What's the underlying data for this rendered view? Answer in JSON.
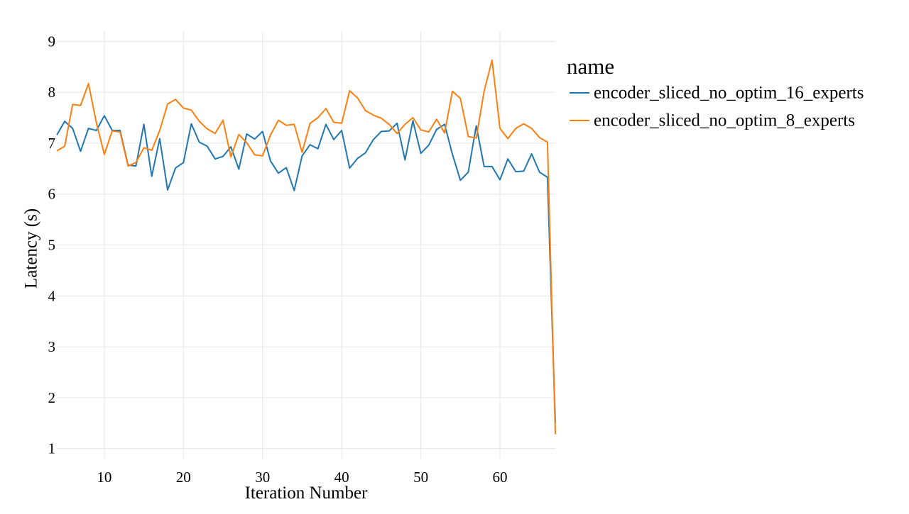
{
  "chart_data": {
    "type": "line",
    "title": "",
    "xlabel": "Iteration Number",
    "ylabel": "Latency (s)",
    "xlim": [
      4,
      67
    ],
    "ylim": [
      0.8,
      9.2
    ],
    "xticks": [
      10,
      20,
      30,
      40,
      50,
      60
    ],
    "yticks": [
      1,
      2,
      3,
      4,
      5,
      6,
      7,
      8,
      9
    ],
    "grid": true,
    "legend": {
      "title": "name",
      "position": "right"
    },
    "x": [
      4,
      5,
      6,
      7,
      8,
      9,
      10,
      11,
      12,
      13,
      14,
      15,
      16,
      17,
      18,
      19,
      20,
      21,
      22,
      23,
      24,
      25,
      26,
      27,
      28,
      29,
      30,
      31,
      32,
      33,
      34,
      35,
      36,
      37,
      38,
      39,
      40,
      41,
      42,
      43,
      44,
      45,
      46,
      47,
      48,
      49,
      50,
      51,
      52,
      53,
      54,
      55,
      56,
      57,
      58,
      59,
      60,
      61,
      62,
      63,
      64,
      65,
      66,
      67
    ],
    "series": [
      {
        "name": "encoder_sliced_no_optim_16_experts",
        "color": "#1f77b4",
        "values": [
          7.16,
          7.43,
          7.29,
          6.84,
          7.29,
          7.25,
          7.54,
          7.25,
          7.25,
          6.57,
          6.55,
          7.37,
          6.35,
          7.09,
          6.08,
          6.51,
          6.62,
          7.38,
          7.02,
          6.94,
          6.69,
          6.74,
          6.93,
          6.49,
          7.18,
          7.08,
          7.23,
          6.65,
          6.41,
          6.52,
          6.07,
          6.75,
          6.97,
          6.89,
          7.37,
          7.07,
          7.25,
          6.51,
          6.7,
          6.81,
          7.07,
          7.23,
          7.24,
          7.39,
          6.67,
          7.44,
          6.8,
          6.96,
          7.27,
          7.37,
          6.78,
          6.27,
          6.43,
          7.34,
          6.54,
          6.54,
          6.28,
          6.69,
          6.44,
          6.45,
          6.79,
          6.43,
          6.33,
          1.5
        ]
      },
      {
        "name": "encoder_sliced_no_optim_8_experts",
        "color": "#ff7f0e",
        "values": [
          6.85,
          6.94,
          7.76,
          7.74,
          8.17,
          7.4,
          6.78,
          7.24,
          7.22,
          6.55,
          6.62,
          6.91,
          6.86,
          7.25,
          7.77,
          7.86,
          7.69,
          7.65,
          7.43,
          7.28,
          7.19,
          7.45,
          6.73,
          7.17,
          7.01,
          6.77,
          6.75,
          7.16,
          7.45,
          7.35,
          7.37,
          6.82,
          7.39,
          7.5,
          7.68,
          7.41,
          7.39,
          8.03,
          7.89,
          7.64,
          7.55,
          7.49,
          7.37,
          7.19,
          7.37,
          7.5,
          7.26,
          7.22,
          7.47,
          7.2,
          8.02,
          7.88,
          7.13,
          7.1,
          8.02,
          8.63,
          7.29,
          7.09,
          7.29,
          7.38,
          7.29,
          7.11,
          7.02,
          1.28
        ]
      }
    ]
  }
}
